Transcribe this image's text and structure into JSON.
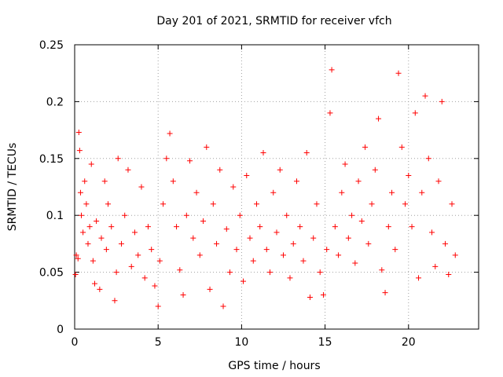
{
  "chart_data": {
    "type": "scatter",
    "title": "Day 201 of 2021, SRMTID for receiver vfch",
    "xlabel": "GPS time / hours",
    "ylabel": "SRMTID / TECUs",
    "xlim": [
      0,
      24.2
    ],
    "ylim": [
      0,
      0.25
    ],
    "x_ticks": [
      0,
      5,
      10,
      15,
      20
    ],
    "x_tick_labels": [
      "0",
      "5",
      "10",
      "15",
      "20"
    ],
    "y_ticks": [
      0,
      0.05,
      0.1,
      0.15,
      0.2,
      0.25
    ],
    "y_tick_labels": [
      "0",
      "0.05",
      "0.1",
      "0.15",
      "0.2",
      "0.25"
    ],
    "grid": true,
    "marker": "+",
    "color": "#ff0000",
    "series": [
      {
        "name": "SRMTID",
        "points": [
          [
            0.05,
            0.048
          ],
          [
            0.1,
            0.065
          ],
          [
            0.2,
            0.062
          ],
          [
            0.25,
            0.173
          ],
          [
            0.3,
            0.157
          ],
          [
            0.35,
            0.12
          ],
          [
            0.4,
            0.1
          ],
          [
            0.5,
            0.085
          ],
          [
            0.6,
            0.13
          ],
          [
            0.7,
            0.11
          ],
          [
            0.8,
            0.075
          ],
          [
            0.9,
            0.09
          ],
          [
            1.0,
            0.145
          ],
          [
            1.1,
            0.06
          ],
          [
            1.2,
            0.04
          ],
          [
            1.3,
            0.095
          ],
          [
            1.5,
            0.035
          ],
          [
            1.6,
            0.08
          ],
          [
            1.8,
            0.13
          ],
          [
            1.9,
            0.07
          ],
          [
            2.0,
            0.11
          ],
          [
            2.2,
            0.09
          ],
          [
            2.4,
            0.025
          ],
          [
            2.5,
            0.05
          ],
          [
            2.6,
            0.15
          ],
          [
            2.8,
            0.075
          ],
          [
            3.0,
            0.1
          ],
          [
            3.2,
            0.14
          ],
          [
            3.4,
            0.055
          ],
          [
            3.6,
            0.085
          ],
          [
            3.8,
            0.065
          ],
          [
            4.0,
            0.125
          ],
          [
            4.2,
            0.045
          ],
          [
            4.4,
            0.09
          ],
          [
            4.6,
            0.07
          ],
          [
            4.8,
            0.038
          ],
          [
            5.0,
            0.02
          ],
          [
            5.1,
            0.06
          ],
          [
            5.3,
            0.11
          ],
          [
            5.5,
            0.15
          ],
          [
            5.7,
            0.172
          ],
          [
            5.9,
            0.13
          ],
          [
            6.1,
            0.09
          ],
          [
            6.3,
            0.052
          ],
          [
            6.5,
            0.03
          ],
          [
            6.7,
            0.1
          ],
          [
            6.9,
            0.148
          ],
          [
            7.1,
            0.08
          ],
          [
            7.3,
            0.12
          ],
          [
            7.5,
            0.065
          ],
          [
            7.7,
            0.095
          ],
          [
            7.9,
            0.16
          ],
          [
            8.1,
            0.035
          ],
          [
            8.3,
            0.11
          ],
          [
            8.5,
            0.075
          ],
          [
            8.7,
            0.14
          ],
          [
            8.9,
            0.02
          ],
          [
            9.1,
            0.088
          ],
          [
            9.3,
            0.05
          ],
          [
            9.5,
            0.125
          ],
          [
            9.7,
            0.07
          ],
          [
            9.9,
            0.1
          ],
          [
            10.1,
            0.042
          ],
          [
            10.3,
            0.135
          ],
          [
            10.5,
            0.08
          ],
          [
            10.7,
            0.06
          ],
          [
            10.9,
            0.11
          ],
          [
            11.1,
            0.09
          ],
          [
            11.3,
            0.155
          ],
          [
            11.5,
            0.07
          ],
          [
            11.7,
            0.05
          ],
          [
            11.9,
            0.12
          ],
          [
            12.1,
            0.085
          ],
          [
            12.3,
            0.14
          ],
          [
            12.5,
            0.065
          ],
          [
            12.7,
            0.1
          ],
          [
            12.9,
            0.045
          ],
          [
            13.1,
            0.075
          ],
          [
            13.3,
            0.13
          ],
          [
            13.5,
            0.09
          ],
          [
            13.7,
            0.06
          ],
          [
            13.9,
            0.155
          ],
          [
            14.1,
            0.028
          ],
          [
            14.3,
            0.08
          ],
          [
            14.5,
            0.11
          ],
          [
            14.7,
            0.05
          ],
          [
            14.9,
            0.03
          ],
          [
            15.1,
            0.07
          ],
          [
            15.3,
            0.19
          ],
          [
            15.4,
            0.228
          ],
          [
            15.6,
            0.09
          ],
          [
            15.8,
            0.065
          ],
          [
            16.0,
            0.12
          ],
          [
            16.2,
            0.145
          ],
          [
            16.4,
            0.08
          ],
          [
            16.6,
            0.1
          ],
          [
            16.8,
            0.058
          ],
          [
            17.0,
            0.13
          ],
          [
            17.2,
            0.095
          ],
          [
            17.4,
            0.16
          ],
          [
            17.6,
            0.075
          ],
          [
            17.8,
            0.11
          ],
          [
            18.0,
            0.14
          ],
          [
            18.2,
            0.185
          ],
          [
            18.4,
            0.052
          ],
          [
            18.6,
            0.032
          ],
          [
            18.8,
            0.09
          ],
          [
            19.0,
            0.12
          ],
          [
            19.2,
            0.07
          ],
          [
            19.4,
            0.225
          ],
          [
            19.6,
            0.16
          ],
          [
            19.8,
            0.11
          ],
          [
            20.0,
            0.135
          ],
          [
            20.2,
            0.09
          ],
          [
            20.4,
            0.19
          ],
          [
            20.6,
            0.045
          ],
          [
            20.8,
            0.12
          ],
          [
            21.0,
            0.205
          ],
          [
            21.2,
            0.15
          ],
          [
            21.4,
            0.085
          ],
          [
            21.6,
            0.055
          ],
          [
            21.8,
            0.13
          ],
          [
            22.0,
            0.2
          ],
          [
            22.2,
            0.075
          ],
          [
            22.4,
            0.048
          ],
          [
            22.6,
            0.11
          ],
          [
            22.8,
            0.065
          ]
        ]
      }
    ]
  }
}
